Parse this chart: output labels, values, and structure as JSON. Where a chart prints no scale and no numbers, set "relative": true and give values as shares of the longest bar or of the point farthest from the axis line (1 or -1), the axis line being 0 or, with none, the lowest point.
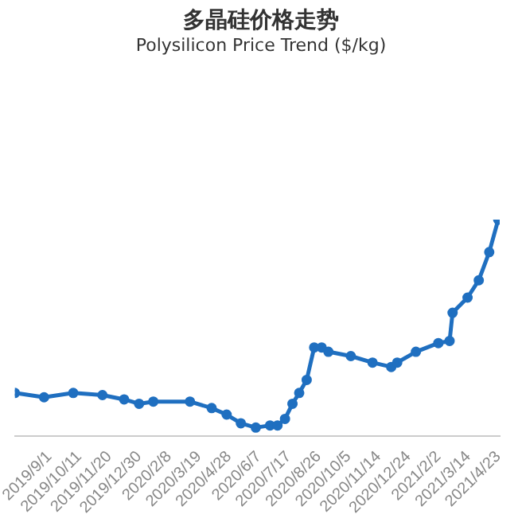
{
  "chart_data": {
    "type": "line",
    "title": "多晶硅价格走势",
    "subtitle": "Polysilicon Price Trend ($/kg)",
    "relative": true,
    "marker": "circle",
    "grid": false,
    "legend": false,
    "x": [
      "2019-07-17",
      "2019-08-25",
      "2019-10-03",
      "2019-11-11",
      "2019-12-10",
      "2019-12-30",
      "2020-01-18",
      "2020-03-07",
      "2020-04-05",
      "2020-04-25",
      "2020-05-14",
      "2020-06-03",
      "2020-06-22",
      "2020-07-02",
      "2020-07-12",
      "2020-07-22",
      "2020-07-31",
      "2020-08-10",
      "2020-08-20",
      "2020-08-30",
      "2020-09-08",
      "2020-10-08",
      "2020-11-06",
      "2020-12-01",
      "2020-12-09",
      "2021-01-03",
      "2021-02-02",
      "2021-02-17",
      "2021-02-21",
      "2021-03-13",
      "2021-03-28",
      "2021-04-11",
      "2021-04-23"
    ],
    "xlim": [
      "2019-07-17",
      "2021-04-25"
    ],
    "xticks": [
      {
        "value": "2019-09-01",
        "label": "2019/9/1"
      },
      {
        "value": "2019-10-11",
        "label": "2019/10/11"
      },
      {
        "value": "2019-11-20",
        "label": "2019/11/20"
      },
      {
        "value": "2019-12-30",
        "label": "2019/12/30"
      },
      {
        "value": "2020-02-08",
        "label": "2020/2/8"
      },
      {
        "value": "2020-03-19",
        "label": "2020/3/19"
      },
      {
        "value": "2020-04-28",
        "label": "2020/4/28"
      },
      {
        "value": "2020-06-07",
        "label": "2020/6/7"
      },
      {
        "value": "2020-07-17",
        "label": "2020/7/17"
      },
      {
        "value": "2020-08-26",
        "label": "2020/8/26"
      },
      {
        "value": "2020-10-05",
        "label": "2020/10/5"
      },
      {
        "value": "2020-11-14",
        "label": "2020/11/14"
      },
      {
        "value": "2020-12-24",
        "label": "2020/12/24"
      },
      {
        "value": "2021-02-02",
        "label": "2021/2/2"
      },
      {
        "value": "2021-03-14",
        "label": "2021/3/14"
      },
      {
        "value": "2021-04-23",
        "label": "2021/4/23"
      }
    ],
    "series": [
      {
        "color": "#1f6fc0",
        "values": [
          0.2,
          0.18,
          0.2,
          0.19,
          0.17,
          0.15,
          0.16,
          0.16,
          0.13,
          0.1,
          0.06,
          0.04,
          0.05,
          0.05,
          0.08,
          0.15,
          0.2,
          0.26,
          0.41,
          0.41,
          0.39,
          0.37,
          0.34,
          0.32,
          0.34,
          0.39,
          0.43,
          0.44,
          0.57,
          0.64,
          0.72,
          0.85,
          1
        ]
      }
    ]
  }
}
